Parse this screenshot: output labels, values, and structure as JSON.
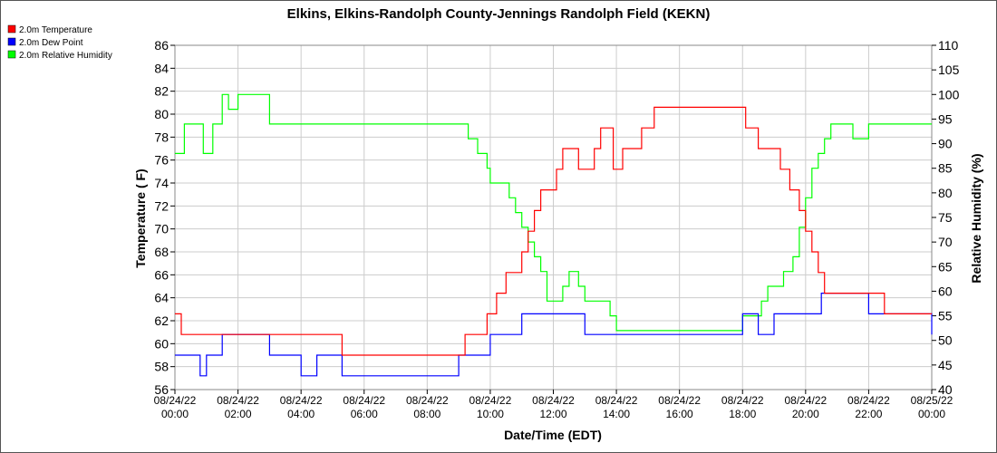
{
  "chart_data": {
    "type": "line",
    "title": "Elkins, Elkins-Randolph County-Jennings Randolph Field (KEKN)",
    "xlabel": "Date/Time (EDT)",
    "ylabel": "Temperature ( F)",
    "y2label": "Relative Humidity (%)",
    "ylim": [
      56,
      86
    ],
    "y2lim": [
      40,
      110
    ],
    "yticks": [
      56,
      58,
      60,
      62,
      64,
      66,
      68,
      70,
      72,
      74,
      76,
      78,
      80,
      82,
      84,
      86
    ],
    "y2ticks": [
      40,
      45,
      50,
      55,
      60,
      65,
      70,
      75,
      80,
      85,
      90,
      95,
      100,
      105,
      110
    ],
    "xlim": [
      0,
      24
    ],
    "x_ticks": [
      {
        "h": 0,
        "date": "08/24/22",
        "time": "00:00"
      },
      {
        "h": 2,
        "date": "08/24/22",
        "time": "02:00"
      },
      {
        "h": 4,
        "date": "08/24/22",
        "time": "04:00"
      },
      {
        "h": 6,
        "date": "08/24/22",
        "time": "06:00"
      },
      {
        "h": 8,
        "date": "08/24/22",
        "time": "08:00"
      },
      {
        "h": 10,
        "date": "08/24/22",
        "time": "10:00"
      },
      {
        "h": 12,
        "date": "08/24/22",
        "time": "12:00"
      },
      {
        "h": 14,
        "date": "08/24/22",
        "time": "14:00"
      },
      {
        "h": 16,
        "date": "08/24/22",
        "time": "16:00"
      },
      {
        "h": 18,
        "date": "08/24/22",
        "time": "18:00"
      },
      {
        "h": 20,
        "date": "08/24/22",
        "time": "20:00"
      },
      {
        "h": 22,
        "date": "08/24/22",
        "time": "22:00"
      },
      {
        "h": 24,
        "date": "08/25/22",
        "time": "00:00"
      }
    ],
    "grid": true,
    "legend_position": "top-left",
    "series": [
      {
        "name": "2.0m Temperature",
        "color": "#ff0000",
        "axis": "left",
        "x": [
          0.0,
          0.2,
          0.3,
          0.9,
          1.0,
          1.1,
          1.3,
          1.8,
          2.0,
          2.5,
          3.0,
          3.5,
          4.0,
          4.5,
          5.0,
          5.1,
          5.3,
          6.0,
          7.0,
          7.8,
          8.1,
          8.5,
          8.8,
          9.2,
          9.4,
          9.7,
          9.9,
          10.2,
          10.3,
          10.5,
          10.7,
          10.8,
          11.0,
          11.2,
          11.4,
          11.6,
          11.8,
          12.1,
          12.3,
          12.5,
          12.8,
          13.0,
          13.3,
          13.5,
          13.9,
          14.2,
          14.5,
          14.8,
          15.2,
          15.4,
          15.5,
          16.0,
          16.5,
          17.0,
          17.5,
          17.9,
          18.1,
          18.5,
          18.8,
          19.2,
          19.5,
          19.8,
          20.0,
          20.2,
          20.4,
          20.6,
          21.0,
          21.5,
          22.0,
          22.2,
          22.5,
          23.0,
          23.5,
          23.8,
          24.0
        ],
        "values": [
          62.6,
          60.8,
          60.8,
          60.8,
          60.8,
          60.8,
          60.8,
          60.8,
          60.8,
          60.8,
          60.8,
          60.8,
          60.8,
          60.8,
          60.8,
          60.8,
          59.0,
          59.0,
          59.0,
          59.0,
          59.0,
          59.0,
          59.0,
          60.8,
          60.8,
          60.8,
          62.6,
          64.4,
          64.4,
          66.2,
          66.2,
          66.2,
          68.0,
          69.8,
          71.6,
          73.4,
          73.4,
          75.2,
          77.0,
          77.0,
          75.2,
          75.2,
          77.0,
          78.8,
          75.2,
          77.0,
          77.0,
          78.8,
          80.6,
          80.6,
          80.6,
          80.6,
          80.6,
          80.6,
          80.6,
          80.6,
          78.8,
          77.0,
          77.0,
          75.2,
          73.4,
          71.6,
          69.8,
          68.0,
          66.2,
          64.4,
          64.4,
          64.4,
          64.4,
          64.4,
          62.6,
          62.6,
          62.6,
          62.6,
          62.6
        ]
      },
      {
        "name": "2.0m Dew Point",
        "color": "#0000ff",
        "axis": "left",
        "x": [
          0.0,
          0.5,
          0.8,
          1.0,
          1.3,
          1.5,
          2.0,
          2.5,
          3.0,
          3.5,
          4.0,
          4.5,
          5.0,
          5.3,
          6.0,
          7.0,
          8.0,
          8.5,
          9.0,
          9.5,
          9.8,
          10.0,
          10.2,
          10.5,
          11.0,
          11.5,
          12.0,
          12.5,
          13.0,
          13.5,
          14.0,
          14.5,
          15.0,
          15.5,
          16.0,
          16.5,
          17.0,
          17.5,
          18.0,
          18.5,
          19.0,
          19.5,
          20.0,
          20.5,
          21.0,
          21.5,
          22.0,
          22.5,
          23.0,
          23.5,
          24.0
        ],
        "values": [
          59.0,
          59.0,
          57.2,
          59.0,
          59.0,
          60.8,
          60.8,
          60.8,
          59.0,
          59.0,
          57.2,
          59.0,
          59.0,
          57.2,
          57.2,
          57.2,
          57.2,
          57.2,
          59.0,
          59.0,
          59.0,
          60.8,
          60.8,
          60.8,
          62.6,
          62.6,
          62.6,
          62.6,
          60.8,
          60.8,
          60.8,
          60.8,
          60.8,
          60.8,
          60.8,
          60.8,
          60.8,
          60.8,
          62.6,
          60.8,
          62.6,
          62.6,
          62.6,
          64.4,
          64.4,
          64.4,
          62.6,
          62.6,
          62.6,
          62.6,
          60.8
        ]
      },
      {
        "name": "2.0m Relative Humidity",
        "color": "#00ff00",
        "axis": "right",
        "x": [
          0.0,
          0.1,
          0.3,
          0.6,
          0.9,
          1.0,
          1.2,
          1.5,
          1.7,
          2.0,
          2.5,
          3.0,
          3.5,
          4.0,
          4.5,
          5.0,
          5.5,
          6.0,
          7.0,
          8.0,
          8.5,
          9.0,
          9.3,
          9.6,
          9.9,
          10.0,
          10.4,
          10.6,
          10.8,
          11.0,
          11.2,
          11.4,
          11.6,
          11.8,
          12.0,
          12.3,
          12.5,
          12.8,
          13.0,
          13.3,
          13.5,
          13.8,
          14.0,
          14.3,
          14.6,
          15.0,
          15.5,
          16.0,
          16.5,
          17.0,
          17.5,
          17.8,
          18.0,
          18.3,
          18.6,
          18.8,
          19.0,
          19.3,
          19.6,
          19.8,
          20.0,
          20.2,
          20.4,
          20.6,
          20.8,
          21.0,
          21.5,
          22.0,
          22.5,
          23.0,
          23.5,
          24.0
        ],
        "values": [
          88,
          88,
          94,
          94,
          88,
          88,
          94,
          100,
          97,
          100,
          100,
          94,
          94,
          94,
          94,
          94,
          94,
          94,
          94,
          94,
          94,
          94,
          91,
          88,
          85,
          82,
          82,
          79,
          76,
          73,
          70,
          67,
          64,
          58,
          58,
          61,
          64,
          61,
          58,
          58,
          58,
          55,
          52,
          52,
          52,
          52,
          52,
          52,
          52,
          52,
          52,
          52,
          55,
          55,
          58,
          61,
          61,
          64,
          67,
          73,
          79,
          85,
          88,
          91,
          94,
          94,
          91,
          94,
          94,
          94,
          94,
          94
        ]
      }
    ]
  }
}
